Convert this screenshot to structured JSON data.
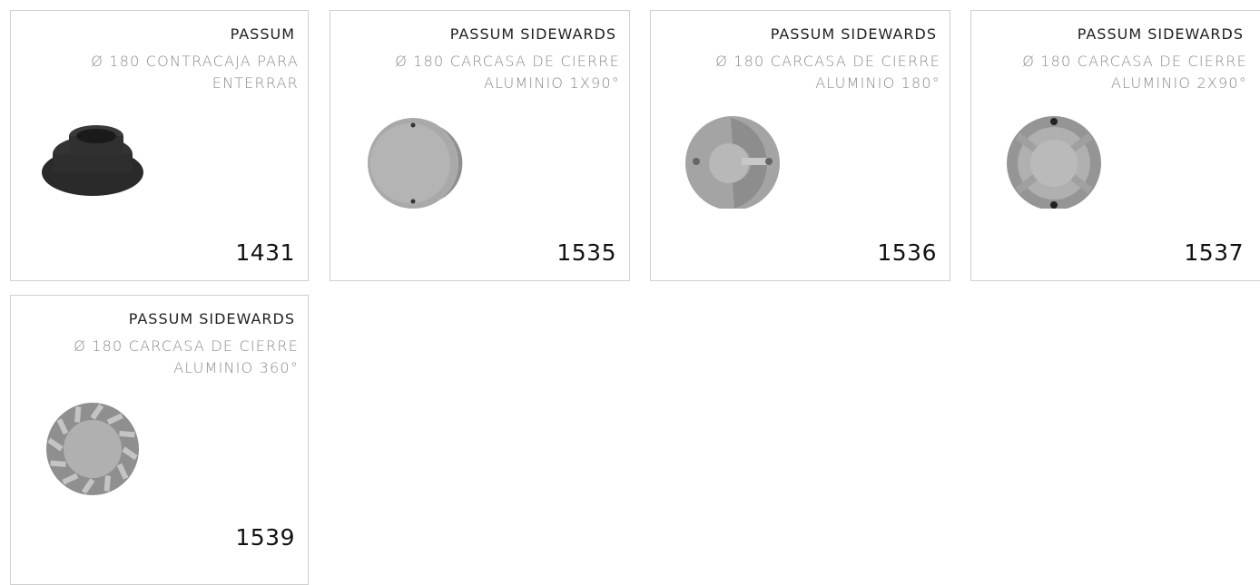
{
  "products": [
    {
      "title": "PASSUM",
      "desc": [
        "Ø 180 CONTRACAJA PARA",
        "ENTERRAR"
      ],
      "code": "1431"
    },
    {
      "title": "PASSUM SIDEWARDS",
      "desc": [
        "Ø 180 CARCASA DE CIERRE",
        "ALUMINIO 1X90°"
      ],
      "code": "1535"
    },
    {
      "title": "PASSUM SIDEWARDS",
      "desc": [
        "Ø 180 CARCASA DE CIERRE",
        "ALUMINIO 180°"
      ],
      "code": "1536"
    },
    {
      "title": "PASSUM SIDEWARDS",
      "desc": [
        "Ø 180 CARCASA DE CIERRE",
        "ALUMINIO 2X90°"
      ],
      "code": "1537"
    },
    {
      "title": "PASSUM SIDEWARDS",
      "desc": [
        "Ø 180 CARCASA DE CIERRE",
        "ALUMINIO 360°"
      ],
      "code": "1539"
    }
  ]
}
